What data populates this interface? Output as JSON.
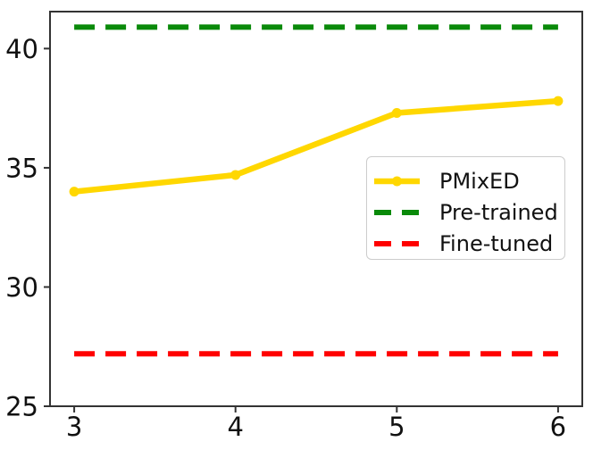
{
  "chart_data": {
    "type": "line",
    "title": "",
    "xlabel": "",
    "ylabel": "",
    "x_ticks": [
      "3",
      "4",
      "5",
      "6"
    ],
    "x_tick_values": [
      3,
      4,
      5,
      6
    ],
    "y_ticks": [
      "25",
      "30",
      "35",
      "40"
    ],
    "y_tick_values": [
      25,
      30,
      35,
      40
    ],
    "xlim": [
      2.85,
      6.15
    ],
    "ylim": [
      25,
      41.55
    ],
    "grid": false,
    "legend_position": "center-right inside axes",
    "axis_color": "#333333",
    "text_color": "#111111",
    "background_color": "#ffffff",
    "series": [
      {
        "name": "PMixED",
        "color": "#FFD700",
        "style": "solid",
        "marker": "circle",
        "line_width": 6.5,
        "x": [
          3,
          4,
          5,
          6
        ],
        "values": [
          34.0,
          34.7,
          37.3,
          37.8
        ]
      },
      {
        "name": "Pre-trained",
        "color": "#0a8a0a",
        "style": "dashed",
        "marker": "none",
        "line_width": 6,
        "x": [
          3,
          6
        ],
        "values": [
          40.9,
          40.9
        ]
      },
      {
        "name": "Fine-tuned",
        "color": "#ff0000",
        "style": "dashed",
        "marker": "none",
        "line_width": 6,
        "x": [
          3,
          6
        ],
        "values": [
          27.2,
          27.2
        ]
      }
    ],
    "layout": {
      "plot_left": 56,
      "plot_top": 13,
      "plot_right": 652,
      "plot_bottom": 455
    }
  }
}
